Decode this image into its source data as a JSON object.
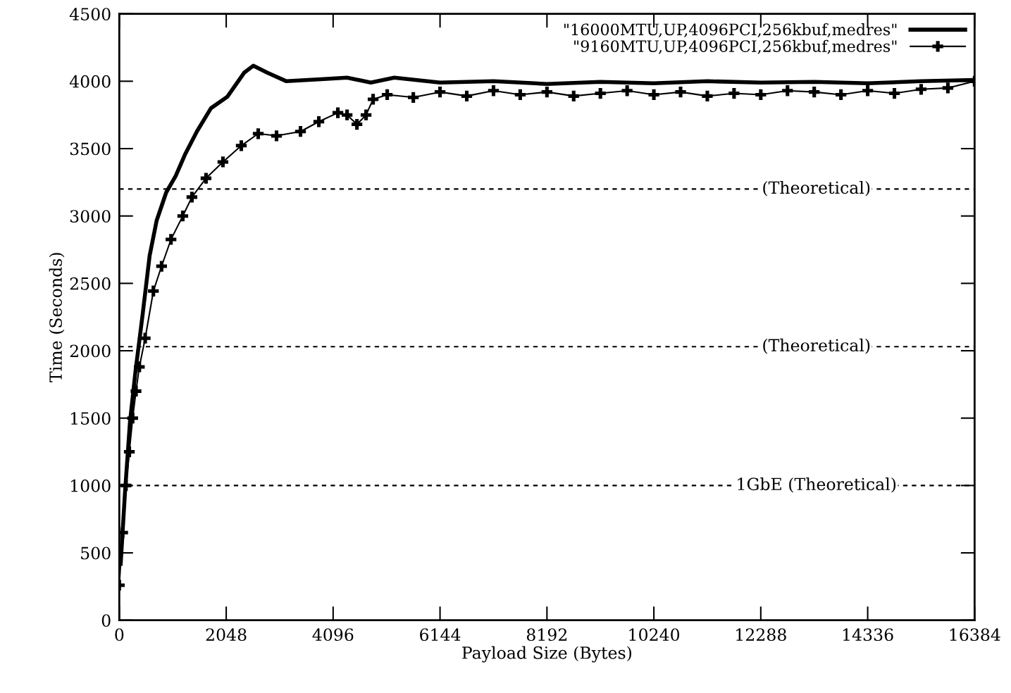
{
  "chart_data": {
    "type": "line",
    "xlabel": "Payload Size (Bytes)",
    "ylabel": "Time (Seconds)",
    "xlim": [
      0,
      16384
    ],
    "ylim": [
      0,
      4500
    ],
    "xticks": [
      0,
      2048,
      4096,
      6144,
      8192,
      10240,
      12288,
      14336,
      16384
    ],
    "yticks": [
      0,
      500,
      1000,
      1500,
      2000,
      2500,
      3000,
      3500,
      4000,
      4500
    ],
    "grid": false,
    "legend": "top right",
    "ref_lines": [
      {
        "axis": "y",
        "value": 3200,
        "label": "(Theoretical)",
        "line_style": "dashed",
        "color": "#000000"
      },
      {
        "axis": "y",
        "value": 2030,
        "label": "(Theoretical)",
        "line_style": "dashed",
        "color": "#000000"
      },
      {
        "axis": "y",
        "value": 1000,
        "label": "1GbE (Theoretical)",
        "line_style": "dashed",
        "color": "#000000"
      }
    ],
    "series": [
      {
        "name": "\"16000MTU,UP,4096PCI,256kbuf,medres\"",
        "color": "#000000",
        "marker": "none",
        "line_style": "solid",
        "x": [
          27,
          108,
          203,
          310,
          446,
          581,
          716,
          900,
          1080,
          1256,
          1486,
          1756,
          2067,
          2391,
          2566,
          2837,
          3201,
          3917,
          4363,
          4818,
          5267,
          6144,
          7168,
          8192,
          9216,
          10240,
          11264,
          12288,
          13312,
          14336,
          15360,
          16384
        ],
        "values": [
          419,
          942,
          1465,
          1847,
          2266,
          2705,
          2967,
          3176,
          3297,
          3454,
          3627,
          3800,
          3884,
          4063,
          4115,
          4063,
          4000,
          4016,
          4027,
          3990,
          4027,
          3990,
          4000,
          3980,
          3995,
          3985,
          4000,
          3990,
          3995,
          3985,
          4000,
          4010
        ]
      },
      {
        "name": "\"9160MTU,UP,4096PCI,256kbuf,medres\"",
        "color": "#000000",
        "marker": "cross",
        "line_style": "solid",
        "x": [
          0,
          64,
          128,
          192,
          256,
          320,
          384,
          496,
          653,
          810,
          990,
          1216,
          1391,
          1661,
          1985,
          2337,
          2661,
          3012,
          3471,
          3822,
          4187,
          4363,
          4552,
          4727,
          4862,
          5132,
          5632,
          6144,
          6656,
          7168,
          7680,
          8192,
          8704,
          9216,
          9728,
          10240,
          10752,
          11264,
          11776,
          12288,
          12800,
          13312,
          13824,
          14336,
          14848,
          15360,
          15872,
          16384
        ],
        "values": [
          260,
          650,
          1000,
          1250,
          1500,
          1700,
          1880,
          2093,
          2443,
          2627,
          2826,
          3000,
          3140,
          3280,
          3401,
          3522,
          3611,
          3595,
          3627,
          3700,
          3766,
          3750,
          3680,
          3750,
          3866,
          3900,
          3880,
          3920,
          3890,
          3930,
          3900,
          3920,
          3890,
          3910,
          3930,
          3900,
          3920,
          3890,
          3910,
          3900,
          3930,
          3920,
          3900,
          3930,
          3910,
          3940,
          3950,
          4000
        ]
      }
    ]
  }
}
